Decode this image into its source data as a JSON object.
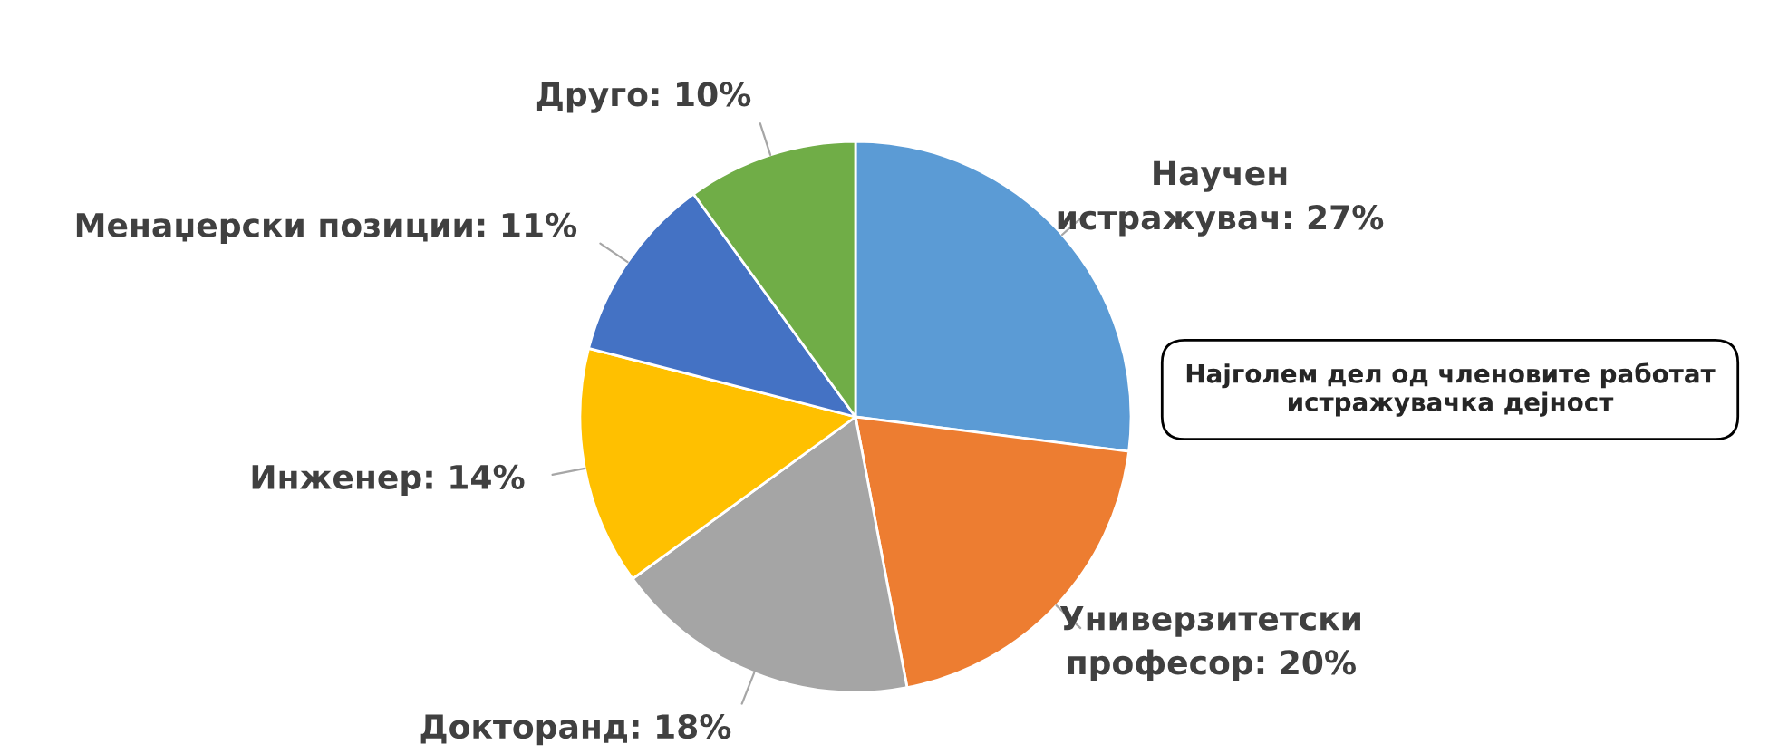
{
  "chart_data": {
    "type": "pie",
    "categories": [
      "Научен истражувач",
      "Универзитетски професор",
      "Докторанд",
      "Инженер",
      "Менаџерски позиции",
      "Друго"
    ],
    "values": [
      27,
      20,
      18,
      14,
      11,
      10
    ],
    "value_labels": [
      "27%",
      "20%",
      "18%",
      "14%",
      "11%",
      "10%"
    ],
    "colors": [
      "#5b9bd5",
      "#ed7d31",
      "#a5a5a5",
      "#ffc000",
      "#4472c4",
      "#70ad47"
    ],
    "annotations": [
      "Најголем дел од членовите работат истражувачка дејност"
    ]
  }
}
